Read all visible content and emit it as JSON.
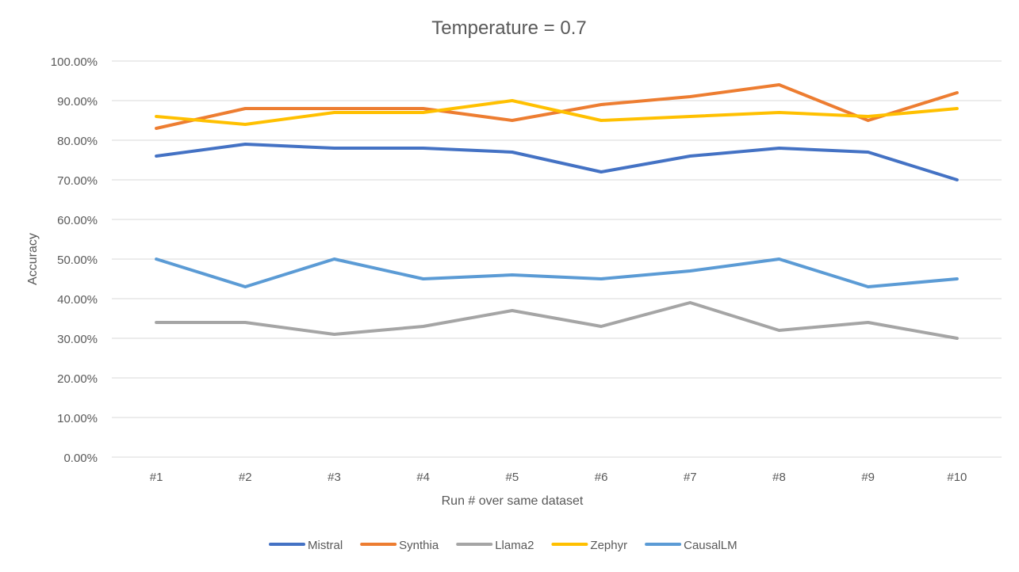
{
  "chart_data": {
    "type": "line",
    "title": "Temperature = 0.7",
    "xlabel": "Run # over same dataset",
    "ylabel": "Accuracy",
    "categories": [
      "#1",
      "#2",
      "#3",
      "#4",
      "#5",
      "#6",
      "#7",
      "#8",
      "#9",
      "#10"
    ],
    "ylim": [
      0,
      1
    ],
    "yticks": [
      {
        "value": 0.0,
        "label": "0.00%"
      },
      {
        "value": 0.1,
        "label": "10.00%"
      },
      {
        "value": 0.2,
        "label": "20.00%"
      },
      {
        "value": 0.3,
        "label": "30.00%"
      },
      {
        "value": 0.4,
        "label": "40.00%"
      },
      {
        "value": 0.5,
        "label": "50.00%"
      },
      {
        "value": 0.6,
        "label": "60.00%"
      },
      {
        "value": 0.7,
        "label": "70.00%"
      },
      {
        "value": 0.8,
        "label": "80.00%"
      },
      {
        "value": 0.9,
        "label": "90.00%"
      },
      {
        "value": 1.0,
        "label": "100.00%"
      }
    ],
    "grid": "horizontal",
    "legend_position": "bottom",
    "series": [
      {
        "name": "Mistral",
        "color": "#4472C4",
        "values": [
          0.76,
          0.79,
          0.78,
          0.78,
          0.77,
          0.72,
          0.76,
          0.78,
          0.77,
          0.7
        ]
      },
      {
        "name": "Synthia",
        "color": "#ED7D31",
        "values": [
          0.83,
          0.88,
          0.88,
          0.88,
          0.85,
          0.89,
          0.91,
          0.94,
          0.85,
          0.92
        ]
      },
      {
        "name": "Llama2",
        "color": "#A5A5A5",
        "values": [
          0.34,
          0.34,
          0.31,
          0.33,
          0.37,
          0.33,
          0.39,
          0.32,
          0.34,
          0.3
        ]
      },
      {
        "name": "Zephyr",
        "color": "#FFC000",
        "values": [
          0.86,
          0.84,
          0.87,
          0.87,
          0.9,
          0.85,
          0.86,
          0.87,
          0.86,
          0.88
        ]
      },
      {
        "name": "CausalLM",
        "color": "#5B9BD5",
        "values": [
          0.5,
          0.43,
          0.5,
          0.45,
          0.46,
          0.45,
          0.47,
          0.5,
          0.43,
          0.45
        ]
      }
    ]
  }
}
